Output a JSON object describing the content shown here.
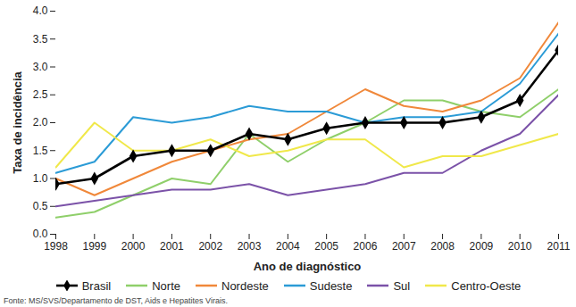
{
  "chart_data": {
    "type": "line",
    "x_label": "Ano de diagnóstico",
    "y_label": "Taxa de incidência",
    "caption": "Fonte: MS/SVS/Departamento de DST, Aids e Hepatites Virais.",
    "x": [
      1998,
      1999,
      2000,
      2001,
      2002,
      2003,
      2004,
      2005,
      2006,
      2007,
      2008,
      2009,
      2010,
      2011
    ],
    "xlim": [
      1998,
      2011
    ],
    "xticks": [
      1998,
      1999,
      2000,
      2001,
      2002,
      2003,
      2004,
      2005,
      2006,
      2007,
      2008,
      2009,
      2010,
      2011
    ],
    "ylim": [
      0,
      4
    ],
    "yticks": [
      {
        "value": 0,
        "label": "0.0"
      },
      0.5,
      {
        "value": 1,
        "label": "1.0"
      },
      1.5,
      {
        "value": 2,
        "label": "2.0"
      },
      2.5,
      {
        "value": 3,
        "label": "3.0"
      },
      3.5,
      {
        "value": 4,
        "label": "4.0"
      }
    ],
    "grid": false,
    "legend": "bottom",
    "series": [
      {
        "name": "Brasil",
        "color": "#000000",
        "marker": "diamond",
        "values": [
          0.9,
          1.0,
          1.4,
          1.5,
          1.5,
          1.8,
          1.7,
          1.9,
          2.0,
          2.0,
          2.0,
          2.1,
          2.4,
          3.3
        ]
      },
      {
        "name": "Norte",
        "color": "#8fcf6a",
        "values": [
          0.3,
          0.4,
          0.7,
          1.0,
          0.9,
          1.8,
          1.3,
          1.7,
          2.0,
          2.4,
          2.4,
          2.2,
          2.1,
          2.6
        ]
      },
      {
        "name": "Nordeste",
        "color": "#f0883a",
        "values": [
          1.0,
          0.7,
          1.0,
          1.3,
          1.5,
          1.7,
          1.8,
          2.2,
          2.6,
          2.3,
          2.2,
          2.4,
          2.8,
          3.8
        ]
      },
      {
        "name": "Sudeste",
        "color": "#2b9bd6",
        "values": [
          1.1,
          1.3,
          2.1,
          2.0,
          2.1,
          2.3,
          2.2,
          2.2,
          2.0,
          2.1,
          2.1,
          2.2,
          2.7,
          3.6
        ]
      },
      {
        "name": "Sul",
        "color": "#7b52a8",
        "values": [
          0.5,
          0.6,
          0.7,
          0.8,
          0.8,
          0.9,
          0.7,
          0.8,
          0.9,
          1.1,
          1.1,
          1.5,
          1.8,
          2.5
        ]
      },
      {
        "name": "Centro-Oeste",
        "color": "#f0e84a",
        "values": [
          1.2,
          2.0,
          1.5,
          1.5,
          1.7,
          1.4,
          1.5,
          1.7,
          1.7,
          1.2,
          1.4,
          1.4,
          1.6,
          1.8
        ]
      }
    ]
  }
}
